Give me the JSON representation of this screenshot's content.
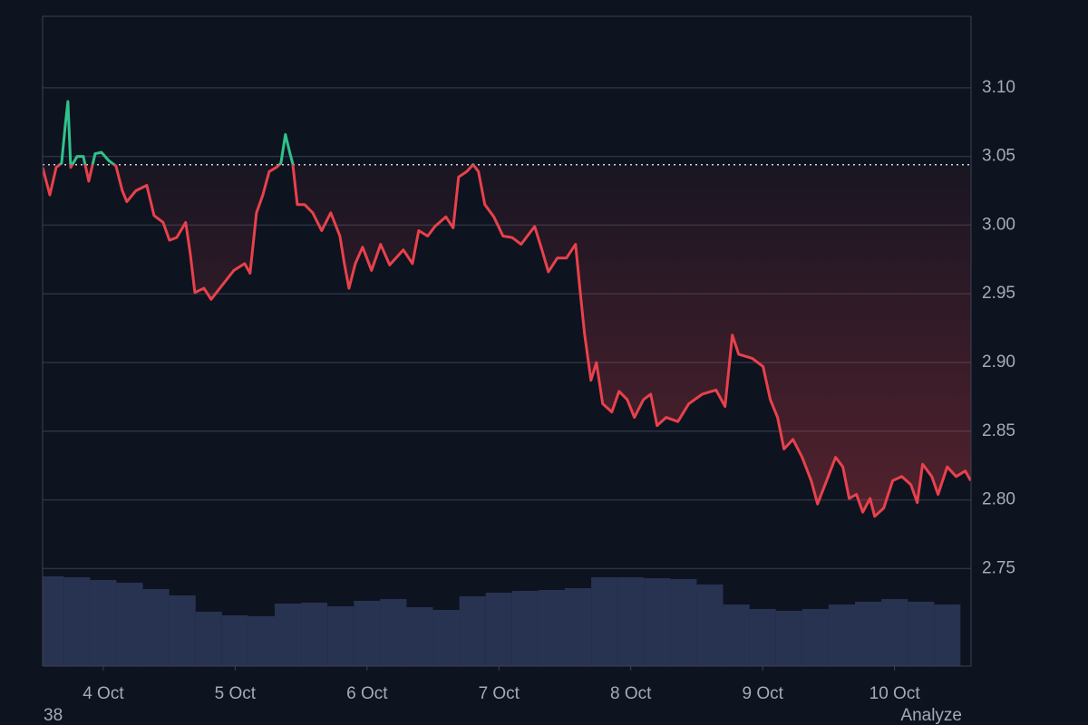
{
  "chart_data": {
    "type": "baseline",
    "baseline": 3.044,
    "above_color": "#2fc28a",
    "below_color": "#e8414b",
    "grid": true,
    "ylim": [
      2.679,
      3.152
    ],
    "yticks": [
      {
        "value": 2.75,
        "label": "2.75"
      },
      {
        "value": 2.8,
        "label": "2.80"
      },
      {
        "value": 2.85,
        "label": "2.85"
      },
      {
        "value": 2.9,
        "label": "2.90"
      },
      {
        "value": 2.95,
        "label": "2.95"
      },
      {
        "value": 3.0,
        "label": "3.00"
      },
      {
        "value": 3.05,
        "label": "3.05"
      },
      {
        "value": 3.1,
        "label": "3.10"
      }
    ],
    "xlim": [
      3.54,
      10.58
    ],
    "xticks": [
      {
        "value": 4,
        "label": "4 Oct"
      },
      {
        "value": 5,
        "label": "5 Oct"
      },
      {
        "value": 6,
        "label": "6 Oct"
      },
      {
        "value": 7,
        "label": "7 Oct"
      },
      {
        "value": 8,
        "label": "8 Oct"
      },
      {
        "value": 9,
        "label": "9 Oct"
      },
      {
        "value": 10,
        "label": "10 Oct"
      }
    ],
    "x": [
      3.54,
      3.595,
      3.643,
      3.684,
      3.711,
      3.732,
      3.753,
      3.801,
      3.849,
      3.89,
      3.938,
      3.986,
      4.041,
      4.096,
      4.144,
      4.179,
      4.247,
      4.33,
      4.385,
      4.454,
      4.502,
      4.557,
      4.625,
      4.66,
      4.694,
      4.763,
      4.818,
      4.9,
      4.99,
      5.072,
      5.113,
      5.162,
      5.21,
      5.258,
      5.313,
      5.347,
      5.381,
      5.416,
      5.436,
      5.471,
      5.526,
      5.588,
      5.656,
      5.725,
      5.794,
      5.828,
      5.863,
      5.911,
      5.966,
      6.034,
      6.103,
      6.172,
      6.275,
      6.344,
      6.392,
      6.46,
      6.515,
      6.598,
      6.653,
      6.694,
      6.756,
      6.804,
      6.845,
      6.893,
      6.962,
      7.031,
      7.1,
      7.168,
      7.271,
      7.326,
      7.375,
      7.443,
      7.512,
      7.581,
      7.615,
      7.649,
      7.698,
      7.739,
      7.787,
      7.856,
      7.911,
      7.973,
      8.027,
      8.096,
      8.151,
      8.199,
      8.268,
      8.357,
      8.44,
      8.543,
      8.646,
      8.715,
      8.77,
      8.818,
      8.921,
      9.003,
      9.058,
      9.113,
      9.162,
      9.23,
      9.299,
      9.368,
      9.416,
      9.485,
      9.553,
      9.608,
      9.656,
      9.711,
      9.759,
      9.814,
      9.849,
      9.918,
      9.986,
      10.055,
      10.124,
      10.172,
      10.213,
      10.282,
      10.33,
      10.399,
      10.467,
      10.536,
      10.577
    ],
    "values": [
      3.042,
      3.022,
      3.042,
      3.045,
      3.072,
      3.09,
      3.042,
      3.05,
      3.05,
      3.032,
      3.052,
      3.053,
      3.047,
      3.043,
      3.025,
      3.017,
      3.025,
      3.029,
      3.007,
      3.002,
      2.989,
      2.991,
      3.002,
      2.979,
      2.951,
      2.954,
      2.946,
      2.956,
      2.967,
      2.972,
      2.965,
      3.009,
      3.022,
      3.039,
      3.042,
      3.045,
      3.066,
      3.052,
      3.045,
      3.015,
      3.015,
      3.009,
      2.996,
      3.009,
      2.992,
      2.972,
      2.954,
      2.972,
      2.984,
      2.967,
      2.986,
      2.971,
      2.982,
      2.972,
      2.996,
      2.992,
      2.999,
      3.006,
      2.998,
      3.035,
      3.039,
      3.044,
      3.039,
      3.015,
      3.006,
      2.992,
      2.991,
      2.986,
      2.999,
      2.982,
      2.966,
      2.976,
      2.976,
      2.986,
      2.953,
      2.921,
      2.887,
      2.9,
      2.87,
      2.864,
      2.879,
      2.873,
      2.86,
      2.873,
      2.877,
      2.854,
      2.86,
      2.857,
      2.87,
      2.877,
      2.88,
      2.868,
      2.92,
      2.906,
      2.903,
      2.897,
      2.873,
      2.86,
      2.837,
      2.844,
      2.831,
      2.814,
      2.797,
      2.814,
      2.831,
      2.824,
      2.801,
      2.804,
      2.791,
      2.801,
      2.788,
      2.794,
      2.814,
      2.817,
      2.811,
      2.798,
      2.826,
      2.817,
      2.804,
      2.824,
      2.817,
      2.821,
      2.814
    ],
    "volume": {
      "color": "#283352",
      "y2lim": [
        0,
        100
      ],
      "x": [
        3.6,
        3.8,
        4.0,
        4.2,
        4.4,
        4.6,
        4.8,
        5.0,
        5.2,
        5.4,
        5.6,
        5.8,
        6.0,
        6.2,
        6.4,
        6.6,
        6.8,
        7.0,
        7.2,
        7.4,
        7.6,
        7.8,
        8.0,
        8.2,
        8.4,
        8.6,
        8.8,
        9.0,
        9.2,
        9.4,
        9.6,
        9.8,
        10.0,
        10.2,
        10.4
      ],
      "values": [
        99,
        98,
        95,
        92,
        85,
        78,
        60,
        56,
        55,
        69,
        70,
        66,
        72,
        74,
        65,
        62,
        77,
        81,
        83,
        84,
        86,
        98,
        98,
        97,
        96,
        90,
        68,
        63,
        61,
        63,
        68,
        71,
        74,
        71,
        68
      ]
    },
    "annotations": [
      "38",
      "Analyze"
    ]
  }
}
